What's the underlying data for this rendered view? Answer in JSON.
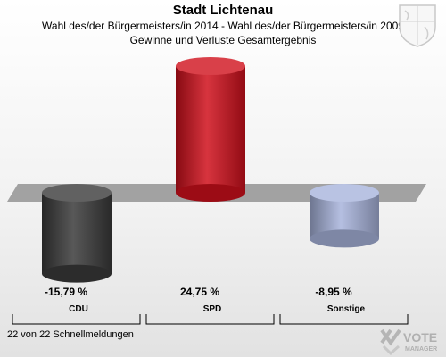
{
  "header": {
    "title": "Stadt Lichtenau",
    "subtitle1": "Wahl des/der Bürgermeisters/in  2014 - Wahl des/der Bürgermeisters/in 2009",
    "subtitle2": "Gewinne und Verluste Gesamtergebnis"
  },
  "footer": {
    "text": "22 von 22 Schnellmeldungen"
  },
  "logo": {
    "text1": "VOTE",
    "text2": "MANAGER"
  },
  "colors": {
    "cdu": "#3a3a3a",
    "spd": "#d0101c",
    "sonstige": "#a8b4dc"
  },
  "chart_data": {
    "type": "bar",
    "categories": [
      "CDU",
      "SPD",
      "Sonstige"
    ],
    "values": [
      -15.79,
      24.75,
      -8.95
    ],
    "value_labels": [
      "-15,79 %",
      "24,75 %",
      "-8,95 %"
    ],
    "title": "Stadt Lichtenau",
    "ylim": [
      -30,
      30
    ],
    "grid": false,
    "legend": "none"
  }
}
